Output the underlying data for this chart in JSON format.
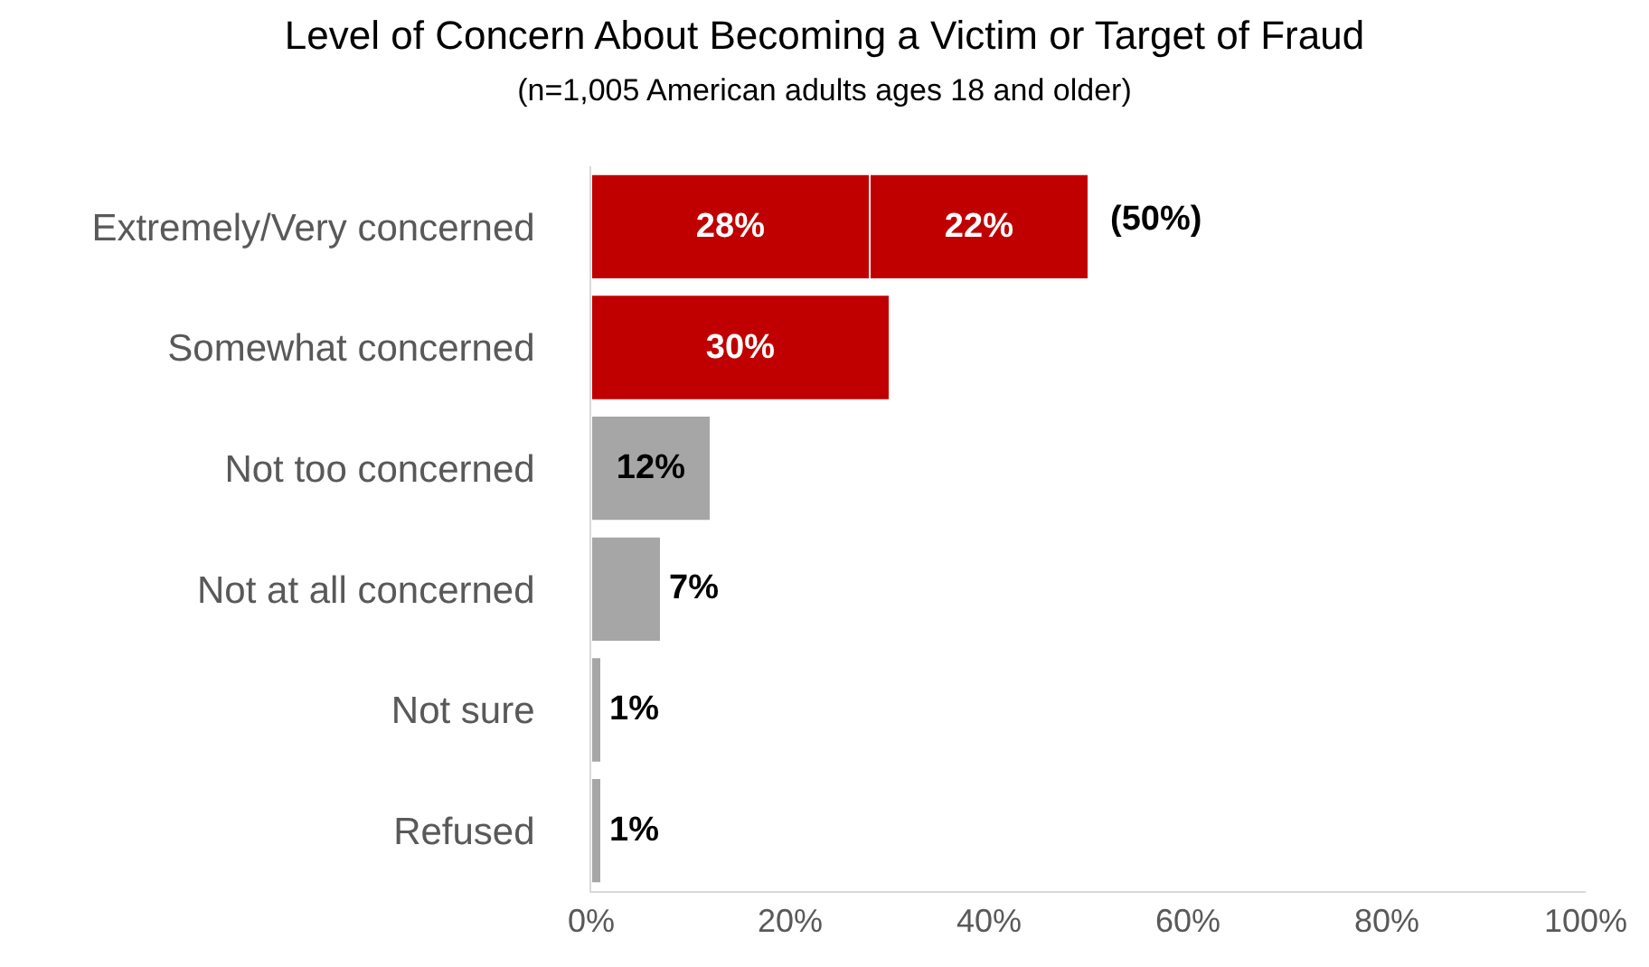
{
  "chart_data": {
    "type": "bar",
    "orientation": "horizontal",
    "stacked": true,
    "title": "Level of Concern About Becoming a Victim or Target of Fraud",
    "subtitle": "(n=1,005 American adults ages 18 and older)",
    "categories": [
      "Extremely/Very concerned",
      "Somewhat concerned",
      "Not too concerned",
      "Not at all concerned",
      "Not sure",
      "Refused"
    ],
    "series": [
      {
        "colors": [
          "#c00000",
          "#c00000",
          "#a6a6a6",
          "#a6a6a6",
          "#a6a6a6",
          "#a6a6a6"
        ],
        "values": [
          28,
          30,
          12,
          7,
          1,
          1
        ],
        "value_labels": [
          "28%",
          "30%",
          "12%",
          "7%",
          "1%",
          "1%"
        ]
      },
      {
        "color": "#c00000",
        "values": [
          22,
          null,
          null,
          null,
          null,
          null
        ],
        "value_labels": [
          "22%",
          null,
          null,
          null,
          null,
          null
        ]
      }
    ],
    "totals": [
      "(50%)",
      null,
      null,
      null,
      null,
      null
    ],
    "xlim": [
      0,
      100
    ],
    "xticks": [
      {
        "value": 0,
        "label": "0%"
      },
      {
        "value": 20,
        "label": "20%"
      },
      {
        "value": 40,
        "label": "40%"
      },
      {
        "value": 60,
        "label": "60%"
      },
      {
        "value": 80,
        "label": "80%"
      },
      {
        "value": 100,
        "label": "100%"
      }
    ]
  }
}
